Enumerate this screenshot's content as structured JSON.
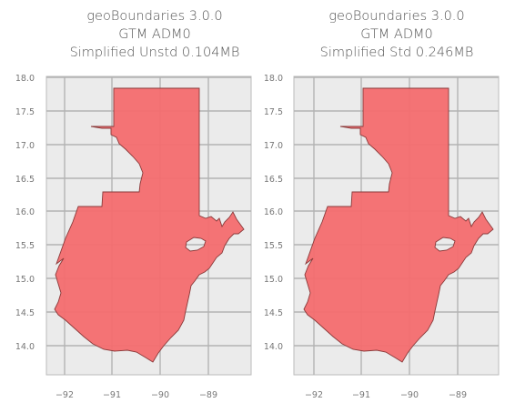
{
  "maps": [
    {
      "title_lines": [
        "geoBoundaries 3.0.0",
        "GTM ADM0",
        "Simplified Unstd 0.104MB"
      ],
      "x_ticks": [
        "−92",
        "−91",
        "−90",
        "−89"
      ],
      "y_ticks": [
        "18.0",
        "17.5",
        "17.0",
        "16.5",
        "16.0",
        "15.5",
        "15.0",
        "14.5",
        "14.0"
      ],
      "fill_color": "#f46d6f",
      "outline_color": "#8a3a3a",
      "axis_bg": "#ebebeb",
      "grid_color": "#b3b3b3"
    },
    {
      "title_lines": [
        "geoBoundaries 3.0.0",
        "GTM ADM0",
        "Simplified Std 0.246MB"
      ],
      "x_ticks": [
        "−92",
        "−91",
        "−90",
        "−89"
      ],
      "y_ticks": [
        "18.0",
        "17.5",
        "17.0",
        "16.5",
        "16.0",
        "15.5",
        "15.0",
        "14.5",
        "14.0"
      ],
      "fill_color": "#f46d6f",
      "outline_color": "#8a3a3a",
      "axis_bg": "#ebebeb",
      "grid_color": "#b3b3b3"
    }
  ]
}
